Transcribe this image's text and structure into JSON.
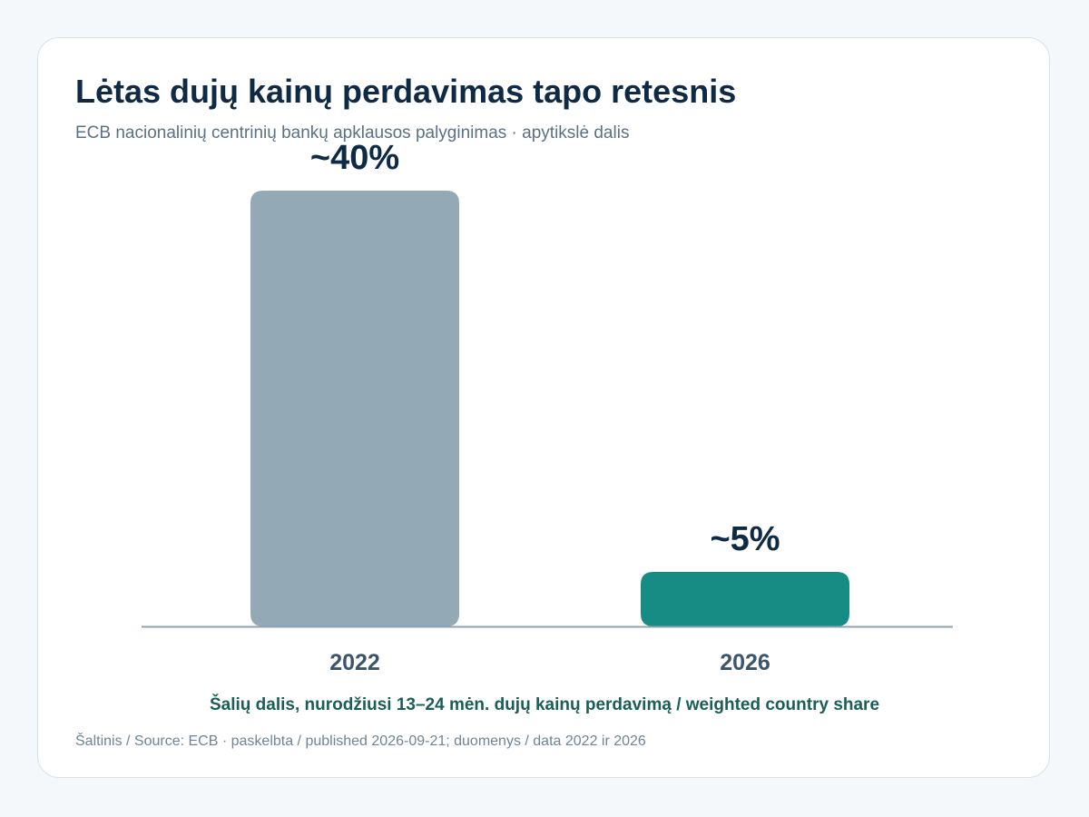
{
  "chart_data": {
    "type": "bar",
    "title": "Lėtas dujų kainų perdavimas tapo retesnis",
    "subtitle": "ECB nacionalinių centrinių bankų apklausos palyginimas · apytikslė dalis",
    "categories": [
      "2022",
      "2026"
    ],
    "values": [
      40,
      5
    ],
    "data_labels": [
      "~40%",
      "~5%"
    ],
    "xlabel": "Šalių dalis, nurodžiusi 13–24 mėn. dujų kainų perdavimą / weighted country share",
    "ylabel": "",
    "ylim": [
      0,
      40
    ],
    "grid": false,
    "legend": "none",
    "colors": [
      "#93a9b6",
      "#178c84"
    ],
    "axis_color": "#8fa3b1",
    "label_color": "#0f2a44",
    "tick_color": "#3d556b"
  },
  "source": "Šaltinis / Source: ECB · paskelbta / published 2026-09-21; duomenys / data 2022 ir 2026"
}
